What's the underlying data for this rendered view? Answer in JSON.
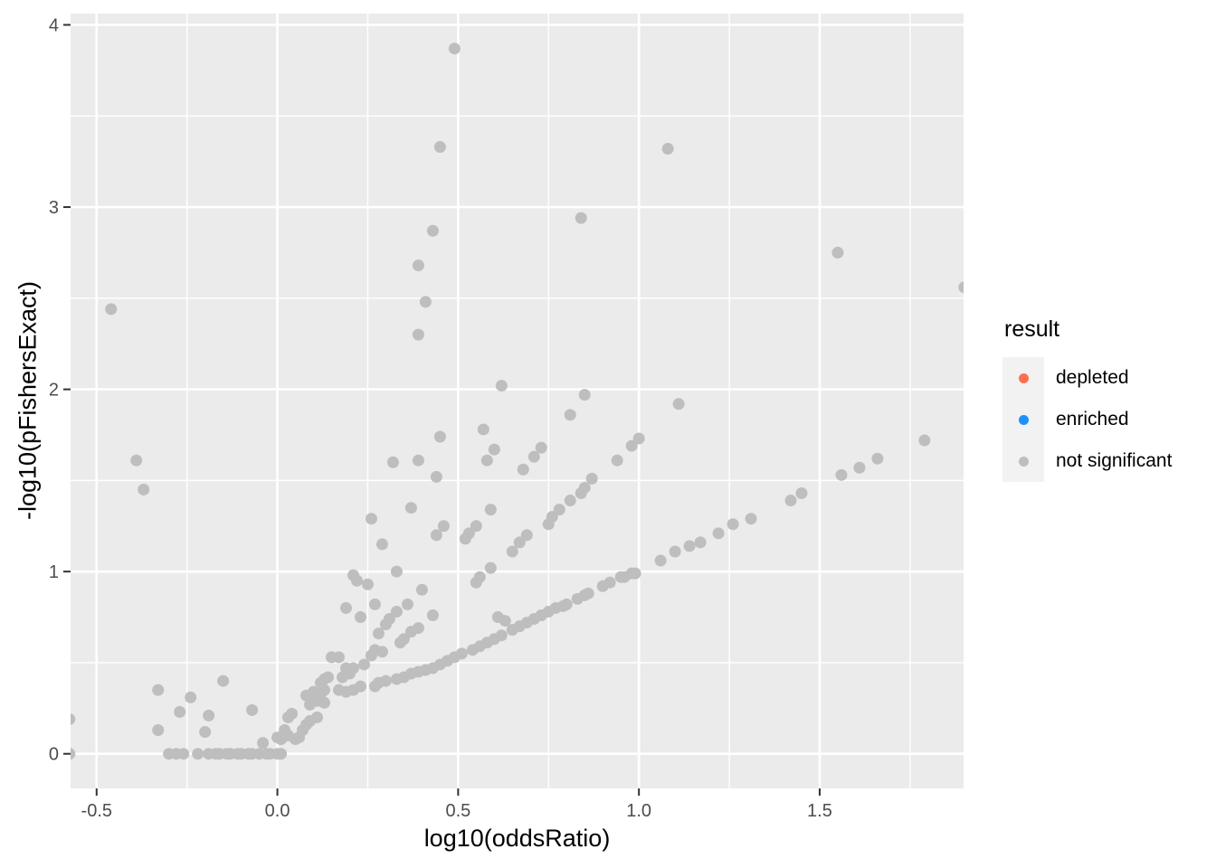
{
  "chart_data": {
    "type": "scatter",
    "title": "",
    "xlabel": "log10(oddsRatio)",
    "ylabel": "-log10(pFishersExact)",
    "xlim": [
      -0.572,
      1.898
    ],
    "ylim": [
      -0.19,
      4.062
    ],
    "grid": true,
    "legend_position": "right",
    "x_major_ticks": [
      -0.5,
      0.0,
      0.5,
      1.0,
      1.5
    ],
    "x_tick_labels": [
      "-0.5",
      "0.0",
      "0.5",
      "1.0",
      "1.5"
    ],
    "x_minor_ticks": [
      -0.25,
      0.25,
      0.75,
      1.25,
      1.75
    ],
    "y_major_ticks": [
      0,
      1,
      2,
      3,
      4
    ],
    "y_tick_labels": [
      "0",
      "1",
      "2",
      "3",
      "4"
    ],
    "y_minor_ticks": [
      0.5,
      1.5,
      2.5,
      3.5
    ],
    "series": [
      {
        "name": "depleted",
        "color": "#FC704F",
        "points": []
      },
      {
        "name": "enriched",
        "color": "#1E90FF",
        "points": []
      },
      {
        "name": "not significant",
        "color": "#BEBEBE",
        "points": [
          [
            0.49,
            3.87
          ],
          [
            0.45,
            3.33
          ],
          [
            1.08,
            3.32
          ],
          [
            0.84,
            2.94
          ],
          [
            0.43,
            2.87
          ],
          [
            0.39,
            2.68
          ],
          [
            0.41,
            2.48
          ],
          [
            0.39,
            2.3
          ],
          [
            -0.46,
            2.44
          ],
          [
            1.55,
            2.75
          ],
          [
            1.9,
            2.56
          ],
          [
            0.62,
            2.02
          ],
          [
            0.85,
            1.97
          ],
          [
            1.11,
            1.92
          ],
          [
            0.81,
            1.86
          ],
          [
            0.57,
            1.78
          ],
          [
            0.45,
            1.74
          ],
          [
            0.6,
            1.67
          ],
          [
            0.58,
            1.61
          ],
          [
            0.73,
            1.68
          ],
          [
            0.71,
            1.63
          ],
          [
            0.68,
            1.56
          ],
          [
            1.0,
            1.73
          ],
          [
            0.98,
            1.69
          ],
          [
            0.94,
            1.61
          ],
          [
            1.79,
            1.72
          ],
          [
            1.66,
            1.62
          ],
          [
            1.61,
            1.57
          ],
          [
            1.56,
            1.53
          ],
          [
            1.45,
            1.43
          ],
          [
            1.42,
            1.39
          ],
          [
            -0.39,
            1.61
          ],
          [
            -0.37,
            1.45
          ],
          [
            0.32,
            1.6
          ],
          [
            0.39,
            1.61
          ],
          [
            0.44,
            1.52
          ],
          [
            0.87,
            1.51
          ],
          [
            0.85,
            1.46
          ],
          [
            0.84,
            1.43
          ],
          [
            0.37,
            1.35
          ],
          [
            0.59,
            1.34
          ],
          [
            0.81,
            1.39
          ],
          [
            0.78,
            1.34
          ],
          [
            0.76,
            1.3
          ],
          [
            0.75,
            1.26
          ],
          [
            0.46,
            1.25
          ],
          [
            0.44,
            1.2
          ],
          [
            0.26,
            1.29
          ],
          [
            0.29,
            1.15
          ],
          [
            0.55,
            1.25
          ],
          [
            0.53,
            1.21
          ],
          [
            0.52,
            1.18
          ],
          [
            0.69,
            1.2
          ],
          [
            0.67,
            1.16
          ],
          [
            0.65,
            1.11
          ],
          [
            1.06,
            1.06
          ],
          [
            1.1,
            1.11
          ],
          [
            1.14,
            1.14
          ],
          [
            1.17,
            1.16
          ],
          [
            1.22,
            1.21
          ],
          [
            1.26,
            1.26
          ],
          [
            1.31,
            1.29
          ],
          [
            0.33,
            1.0
          ],
          [
            0.59,
            1.02
          ],
          [
            0.98,
            0.99
          ],
          [
            0.95,
            0.97
          ],
          [
            0.56,
            0.97
          ],
          [
            0.55,
            0.94
          ],
          [
            0.21,
            0.98
          ],
          [
            0.22,
            0.95
          ],
          [
            0.25,
            0.93
          ],
          [
            0.4,
            0.9
          ],
          [
            0.19,
            0.8
          ],
          [
            0.23,
            0.75
          ],
          [
            0.27,
            0.82
          ],
          [
            0.36,
            0.82
          ],
          [
            0.33,
            0.78
          ],
          [
            0.31,
            0.74
          ],
          [
            0.3,
            0.71
          ],
          [
            0.43,
            0.76
          ],
          [
            0.39,
            0.69
          ],
          [
            0.37,
            0.67
          ],
          [
            0.35,
            0.63
          ],
          [
            0.34,
            0.61
          ],
          [
            0.28,
            0.66
          ],
          [
            0.61,
            0.75
          ],
          [
            0.63,
            0.73
          ],
          [
            0.27,
            0.57
          ],
          [
            0.29,
            0.56
          ],
          [
            0.26,
            0.54
          ],
          [
            0.15,
            0.53
          ],
          [
            0.17,
            0.53
          ],
          [
            0.19,
            0.47
          ],
          [
            0.21,
            0.47
          ],
          [
            0.24,
            0.49
          ],
          [
            0.2,
            0.44
          ],
          [
            0.18,
            0.42
          ],
          [
            0.14,
            0.42
          ],
          [
            0.13,
            0.41
          ],
          [
            -0.15,
            0.4
          ],
          [
            -0.33,
            0.35
          ],
          [
            -0.24,
            0.31
          ],
          [
            -0.27,
            0.23
          ],
          [
            -0.19,
            0.21
          ],
          [
            -0.2,
            0.12
          ],
          [
            -0.33,
            0.13
          ],
          [
            -0.575,
            0.19
          ],
          [
            -0.07,
            0.24
          ],
          [
            -0.04,
            0.06
          ],
          [
            0.17,
            0.35
          ],
          [
            0.19,
            0.34
          ],
          [
            0.21,
            0.35
          ],
          [
            0.23,
            0.37
          ],
          [
            0.12,
            0.33
          ],
          [
            0.1,
            0.34
          ],
          [
            0.08,
            0.32
          ],
          [
            0.11,
            0.29
          ],
          [
            0.13,
            0.28
          ],
          [
            0.09,
            0.27
          ],
          [
            0.1,
            0.31
          ],
          [
            0.12,
            0.39
          ],
          [
            0.13,
            0.35
          ],
          [
            0.01,
            0.08
          ],
          [
            0.0,
            0.09
          ],
          [
            0.03,
            0.1
          ],
          [
            0.02,
            0.13
          ],
          [
            0.03,
            0.2
          ],
          [
            0.04,
            0.22
          ],
          [
            0.05,
            0.08
          ],
          [
            0.06,
            0.09
          ],
          [
            0.07,
            0.13
          ],
          [
            0.08,
            0.16
          ],
          [
            0.09,
            0.18
          ],
          [
            0.11,
            0.2
          ],
          [
            0.27,
            0.37
          ],
          [
            0.28,
            0.39
          ],
          [
            0.3,
            0.4
          ],
          [
            0.33,
            0.41
          ],
          [
            0.35,
            0.42
          ],
          [
            0.37,
            0.44
          ],
          [
            0.39,
            0.45
          ],
          [
            0.41,
            0.46
          ],
          [
            0.43,
            0.47
          ],
          [
            0.45,
            0.49
          ],
          [
            0.47,
            0.51
          ],
          [
            0.49,
            0.53
          ],
          [
            0.51,
            0.55
          ],
          [
            0.54,
            0.57
          ],
          [
            0.56,
            0.59
          ],
          [
            0.58,
            0.61
          ],
          [
            0.6,
            0.63
          ],
          [
            0.62,
            0.65
          ],
          [
            0.65,
            0.68
          ],
          [
            0.67,
            0.7
          ],
          [
            0.69,
            0.72
          ],
          [
            0.71,
            0.74
          ],
          [
            0.73,
            0.76
          ],
          [
            0.75,
            0.78
          ],
          [
            0.77,
            0.8
          ],
          [
            0.79,
            0.81
          ],
          [
            0.8,
            0.82
          ],
          [
            0.83,
            0.85
          ],
          [
            0.85,
            0.87
          ],
          [
            0.86,
            0.88
          ],
          [
            0.9,
            0.92
          ],
          [
            0.92,
            0.94
          ],
          [
            0.96,
            0.97
          ],
          [
            0.99,
            0.99
          ],
          [
            -0.575,
            0.0
          ],
          [
            -0.3,
            0.0
          ],
          [
            -0.28,
            0.0
          ],
          [
            -0.26,
            0.0
          ],
          [
            -0.22,
            0.0
          ],
          [
            -0.19,
            0.0
          ],
          [
            -0.17,
            0.0
          ],
          [
            -0.16,
            0.0
          ],
          [
            -0.14,
            0.0
          ],
          [
            -0.13,
            0.0
          ],
          [
            -0.11,
            0.0
          ],
          [
            -0.1,
            0.0
          ],
          [
            -0.08,
            0.0
          ],
          [
            -0.07,
            0.0
          ],
          [
            -0.05,
            0.0
          ],
          [
            -0.03,
            0.0
          ],
          [
            -0.02,
            0.0
          ],
          [
            0.0,
            0.0
          ],
          [
            0.01,
            0.0
          ]
        ]
      }
    ]
  },
  "axes": {
    "x_title": "log10(oddsRatio)",
    "y_title": "-log10(pFishersExact)"
  },
  "legend": {
    "title": "result",
    "items": [
      {
        "label": "depleted",
        "color": "#FC704F"
      },
      {
        "label": "enriched",
        "color": "#1E90FF"
      },
      {
        "label": "not significant",
        "color": "#BEBEBE"
      }
    ]
  },
  "colors": {
    "panel_background": "#EBEBEB",
    "grid_line": "#FFFFFF",
    "tick_mark": "#333333",
    "tick_label": "#4D4D4D",
    "axis_title": "#000000",
    "legend_key_background": "#F2F2F2",
    "point_not_significant": "#BEBEBE"
  }
}
